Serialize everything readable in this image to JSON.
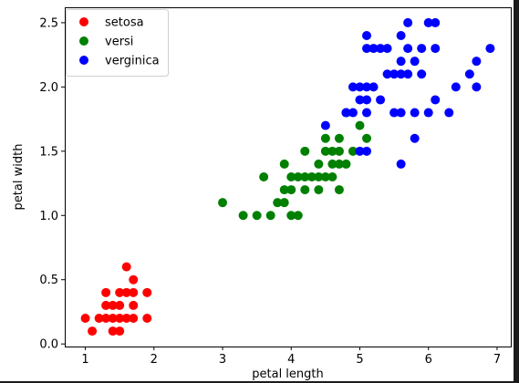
{
  "chart_data": {
    "type": "scatter",
    "title": "",
    "xlabel": "petal length",
    "ylabel": "petal width",
    "xlim": [
      0.7,
      7.2
    ],
    "ylim": [
      -0.02,
      2.62
    ],
    "xticks": [
      1,
      2,
      3,
      4,
      5,
      6,
      7
    ],
    "yticks": [
      0.0,
      0.5,
      1.0,
      1.5,
      2.0,
      2.5
    ],
    "xtick_labels": [
      "1",
      "2",
      "3",
      "4",
      "5",
      "6",
      "7"
    ],
    "ytick_labels": [
      "0.0",
      "0.5",
      "1.0",
      "1.5",
      "2.0",
      "2.5"
    ],
    "grid": false,
    "legend_position": "top-left",
    "series": [
      {
        "name": "setosa",
        "color": "#ff0000",
        "points": [
          [
            1.0,
            0.2
          ],
          [
            1.1,
            0.1
          ],
          [
            1.2,
            0.2
          ],
          [
            1.3,
            0.2
          ],
          [
            1.3,
            0.3
          ],
          [
            1.3,
            0.4
          ],
          [
            1.4,
            0.1
          ],
          [
            1.4,
            0.2
          ],
          [
            1.4,
            0.3
          ],
          [
            1.5,
            0.1
          ],
          [
            1.5,
            0.2
          ],
          [
            1.5,
            0.3
          ],
          [
            1.5,
            0.4
          ],
          [
            1.6,
            0.2
          ],
          [
            1.6,
            0.4
          ],
          [
            1.6,
            0.6
          ],
          [
            1.7,
            0.2
          ],
          [
            1.7,
            0.3
          ],
          [
            1.7,
            0.4
          ],
          [
            1.7,
            0.5
          ],
          [
            1.9,
            0.2
          ],
          [
            1.9,
            0.4
          ]
        ]
      },
      {
        "name": "versi",
        "color": "#008000",
        "points": [
          [
            3.0,
            1.1
          ],
          [
            3.3,
            1.0
          ],
          [
            3.5,
            1.0
          ],
          [
            3.6,
            1.3
          ],
          [
            3.7,
            1.0
          ],
          [
            3.8,
            1.1
          ],
          [
            3.9,
            1.1
          ],
          [
            3.9,
            1.2
          ],
          [
            3.9,
            1.4
          ],
          [
            4.0,
            1.0
          ],
          [
            4.0,
            1.2
          ],
          [
            4.0,
            1.3
          ],
          [
            4.1,
            1.0
          ],
          [
            4.1,
            1.3
          ],
          [
            4.2,
            1.2
          ],
          [
            4.2,
            1.3
          ],
          [
            4.2,
            1.5
          ],
          [
            4.3,
            1.3
          ],
          [
            4.4,
            1.2
          ],
          [
            4.4,
            1.3
          ],
          [
            4.4,
            1.4
          ],
          [
            4.5,
            1.3
          ],
          [
            4.5,
            1.5
          ],
          [
            4.5,
            1.6
          ],
          [
            4.6,
            1.3
          ],
          [
            4.6,
            1.4
          ],
          [
            4.6,
            1.5
          ],
          [
            4.7,
            1.2
          ],
          [
            4.7,
            1.4
          ],
          [
            4.7,
            1.5
          ],
          [
            4.7,
            1.6
          ],
          [
            4.8,
            1.4
          ],
          [
            4.8,
            1.8
          ],
          [
            4.9,
            1.5
          ],
          [
            5.0,
            1.7
          ],
          [
            5.1,
            1.6
          ]
        ]
      },
      {
        "name": "verginica",
        "color": "#0000ff",
        "points": [
          [
            4.5,
            1.7
          ],
          [
            4.8,
            1.8
          ],
          [
            4.9,
            1.8
          ],
          [
            4.9,
            2.0
          ],
          [
            5.0,
            1.5
          ],
          [
            5.0,
            1.9
          ],
          [
            5.0,
            2.0
          ],
          [
            5.1,
            1.5
          ],
          [
            5.1,
            1.8
          ],
          [
            5.1,
            1.9
          ],
          [
            5.1,
            2.0
          ],
          [
            5.1,
            2.3
          ],
          [
            5.1,
            2.4
          ],
          [
            5.2,
            2.0
          ],
          [
            5.2,
            2.3
          ],
          [
            5.3,
            1.9
          ],
          [
            5.3,
            2.3
          ],
          [
            5.4,
            2.1
          ],
          [
            5.4,
            2.3
          ],
          [
            5.5,
            1.8
          ],
          [
            5.5,
            2.1
          ],
          [
            5.6,
            1.4
          ],
          [
            5.6,
            1.8
          ],
          [
            5.6,
            2.1
          ],
          [
            5.6,
            2.2
          ],
          [
            5.6,
            2.4
          ],
          [
            5.7,
            2.1
          ],
          [
            5.7,
            2.3
          ],
          [
            5.7,
            2.5
          ],
          [
            5.8,
            1.6
          ],
          [
            5.8,
            1.8
          ],
          [
            5.8,
            2.2
          ],
          [
            5.9,
            2.1
          ],
          [
            5.9,
            2.3
          ],
          [
            6.0,
            1.8
          ],
          [
            6.0,
            2.5
          ],
          [
            6.1,
            1.9
          ],
          [
            6.1,
            2.3
          ],
          [
            6.1,
            2.5
          ],
          [
            6.3,
            1.8
          ],
          [
            6.4,
            2.0
          ],
          [
            6.6,
            2.1
          ],
          [
            6.7,
            2.0
          ],
          [
            6.7,
            2.2
          ],
          [
            6.9,
            2.3
          ]
        ]
      }
    ]
  }
}
